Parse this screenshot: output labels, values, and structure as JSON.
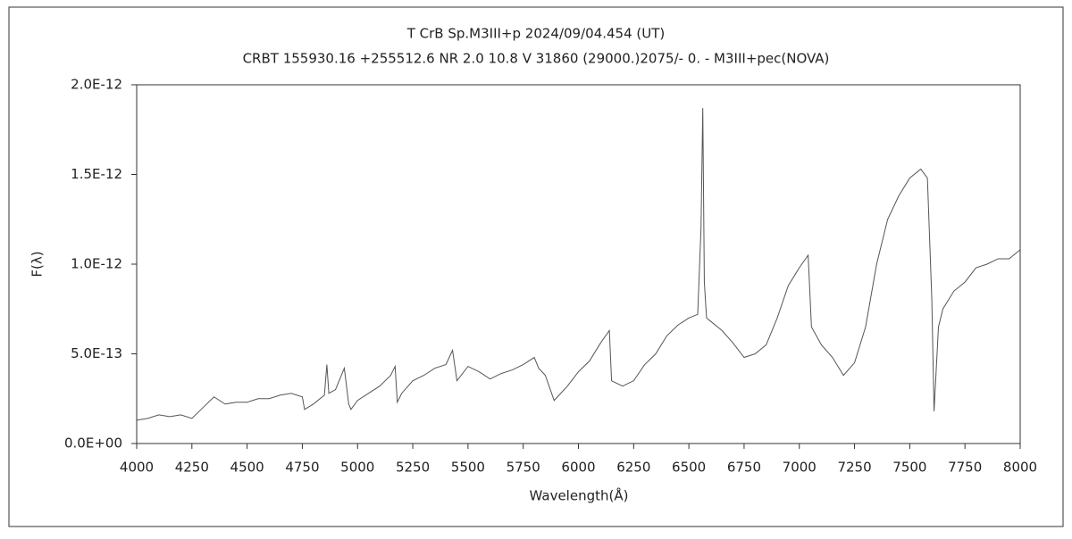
{
  "chart_data": {
    "type": "line",
    "title": "T CrB   Sp.M3III+p   2024/09/04.454 (UT)",
    "subtitle": "CRBT 155930.16 +255512.6 NR 2.0 10.8 V 31860 (29000.)2075/-  0. - M3III+pec(NOVA)",
    "x_label": "Wavelength(Å)",
    "y_label": "F(λ)",
    "color": "#555555",
    "xlim": [
      4000,
      8000
    ],
    "xticks": [
      4000,
      4250,
      4500,
      4750,
      5000,
      5250,
      5500,
      5750,
      6000,
      6250,
      6500,
      6750,
      7000,
      7250,
      7500,
      7750,
      8000
    ],
    "ylim": [
      0,
      2e-12
    ],
    "yticks": [
      {
        "value": 0,
        "label": "0.0E+00"
      },
      {
        "value": 5e-13,
        "label": "5.0E-13"
      },
      {
        "value": 1e-12,
        "label": "1.0E-12"
      },
      {
        "value": 1.5e-12,
        "label": "1.5E-12"
      },
      {
        "value": 2e-12,
        "label": "2.0E-12"
      }
    ],
    "x": [
      4000,
      4050,
      4100,
      4150,
      4200,
      4250,
      4300,
      4350,
      4400,
      4450,
      4500,
      4550,
      4600,
      4650,
      4700,
      4750,
      4760,
      4800,
      4850,
      4861,
      4870,
      4900,
      4940,
      4960,
      4970,
      5000,
      5050,
      5100,
      5150,
      5170,
      5180,
      5200,
      5250,
      5300,
      5350,
      5400,
      5430,
      5450,
      5500,
      5550,
      5600,
      5650,
      5700,
      5750,
      5800,
      5820,
      5850,
      5890,
      5950,
      6000,
      6050,
      6100,
      6140,
      6150,
      6200,
      6250,
      6300,
      6350,
      6400,
      6450,
      6500,
      6540,
      6555,
      6563,
      6570,
      6580,
      6600,
      6650,
      6700,
      6750,
      6800,
      6850,
      6900,
      6950,
      7000,
      7040,
      7055,
      7100,
      7150,
      7200,
      7250,
      7300,
      7350,
      7400,
      7450,
      7500,
      7550,
      7580,
      7600,
      7610,
      7630,
      7650,
      7700,
      7750,
      7800,
      7850,
      7900,
      7950,
      8000
    ],
    "values": [
      1.3e-13,
      1.4e-13,
      1.6e-13,
      1.5e-13,
      1.6e-13,
      1.4e-13,
      2e-13,
      2.6e-13,
      2.2e-13,
      2.3e-13,
      2.3e-13,
      2.5e-13,
      2.5e-13,
      2.7e-13,
      2.8e-13,
      2.6e-13,
      1.9e-13,
      2.2e-13,
      2.7e-13,
      4.4e-13,
      2.8e-13,
      3e-13,
      4.2e-13,
      2.2e-13,
      1.9e-13,
      2.4e-13,
      2.8e-13,
      3.2e-13,
      3.8e-13,
      4.3e-13,
      2.3e-13,
      2.8e-13,
      3.5e-13,
      3.8e-13,
      4.2e-13,
      4.4e-13,
      5.2e-13,
      3.5e-13,
      4.3e-13,
      4e-13,
      3.6e-13,
      3.9e-13,
      4.1e-13,
      4.4e-13,
      4.8e-13,
      4.2e-13,
      3.8e-13,
      2.4e-13,
      3.2e-13,
      4e-13,
      4.6e-13,
      5.6e-13,
      6.3e-13,
      3.5e-13,
      3.2e-13,
      3.5e-13,
      4.4e-13,
      5e-13,
      6e-13,
      6.6e-13,
      7e-13,
      7.2e-13,
      1.2e-12,
      1.87e-12,
      9e-13,
      7e-13,
      6.8e-13,
      6.3e-13,
      5.6e-13,
      4.8e-13,
      5e-13,
      5.5e-13,
      7e-13,
      8.8e-13,
      9.8e-13,
      1.05e-12,
      6.5e-13,
      5.5e-13,
      4.8e-13,
      3.8e-13,
      4.5e-13,
      6.5e-13,
      1e-12,
      1.25e-12,
      1.38e-12,
      1.48e-12,
      1.53e-12,
      1.48e-12,
      8e-13,
      1.8e-13,
      6.5e-13,
      7.5e-13,
      8.5e-13,
      9e-13,
      9.8e-13,
      1e-12,
      1.03e-12,
      1.03e-12,
      1.08e-12
    ]
  }
}
